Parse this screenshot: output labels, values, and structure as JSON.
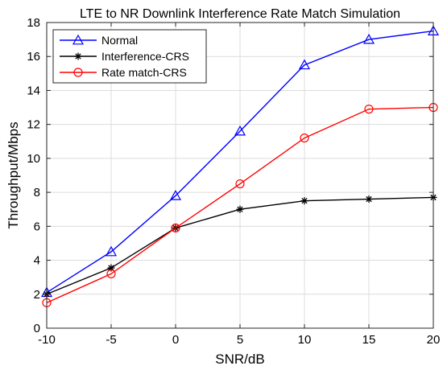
{
  "chart_data": {
    "type": "line",
    "title": "LTE to NR Downlink Interference Rate Match Simulation",
    "xlabel": "SNR/dB",
    "ylabel": "Throughput/Mbps",
    "x": [
      -10,
      -5,
      0,
      5,
      10,
      15,
      20
    ],
    "xlim": [
      -10,
      20
    ],
    "ylim": [
      0,
      18
    ],
    "xticks": [
      "-10",
      "-5",
      "0",
      "5",
      "10",
      "15",
      "20"
    ],
    "yticks": [
      "0",
      "2",
      "4",
      "6",
      "8",
      "10",
      "12",
      "14",
      "16",
      "18"
    ],
    "grid": true,
    "legend_position": "top-left",
    "series": [
      {
        "name": "Normal",
        "color": "#0000ff",
        "marker": "triangle",
        "values": [
          2.1,
          4.5,
          7.8,
          11.6,
          15.5,
          17.0,
          17.5
        ]
      },
      {
        "name": "Interference-CRS",
        "color": "#000000",
        "marker": "asterisk",
        "values": [
          2.0,
          3.55,
          5.9,
          7.0,
          7.5,
          7.6,
          7.7
        ]
      },
      {
        "name": "Rate match-CRS",
        "color": "#ff0000",
        "marker": "circle",
        "values": [
          1.5,
          3.2,
          5.9,
          8.5,
          11.2,
          12.9,
          13.0
        ]
      }
    ]
  }
}
